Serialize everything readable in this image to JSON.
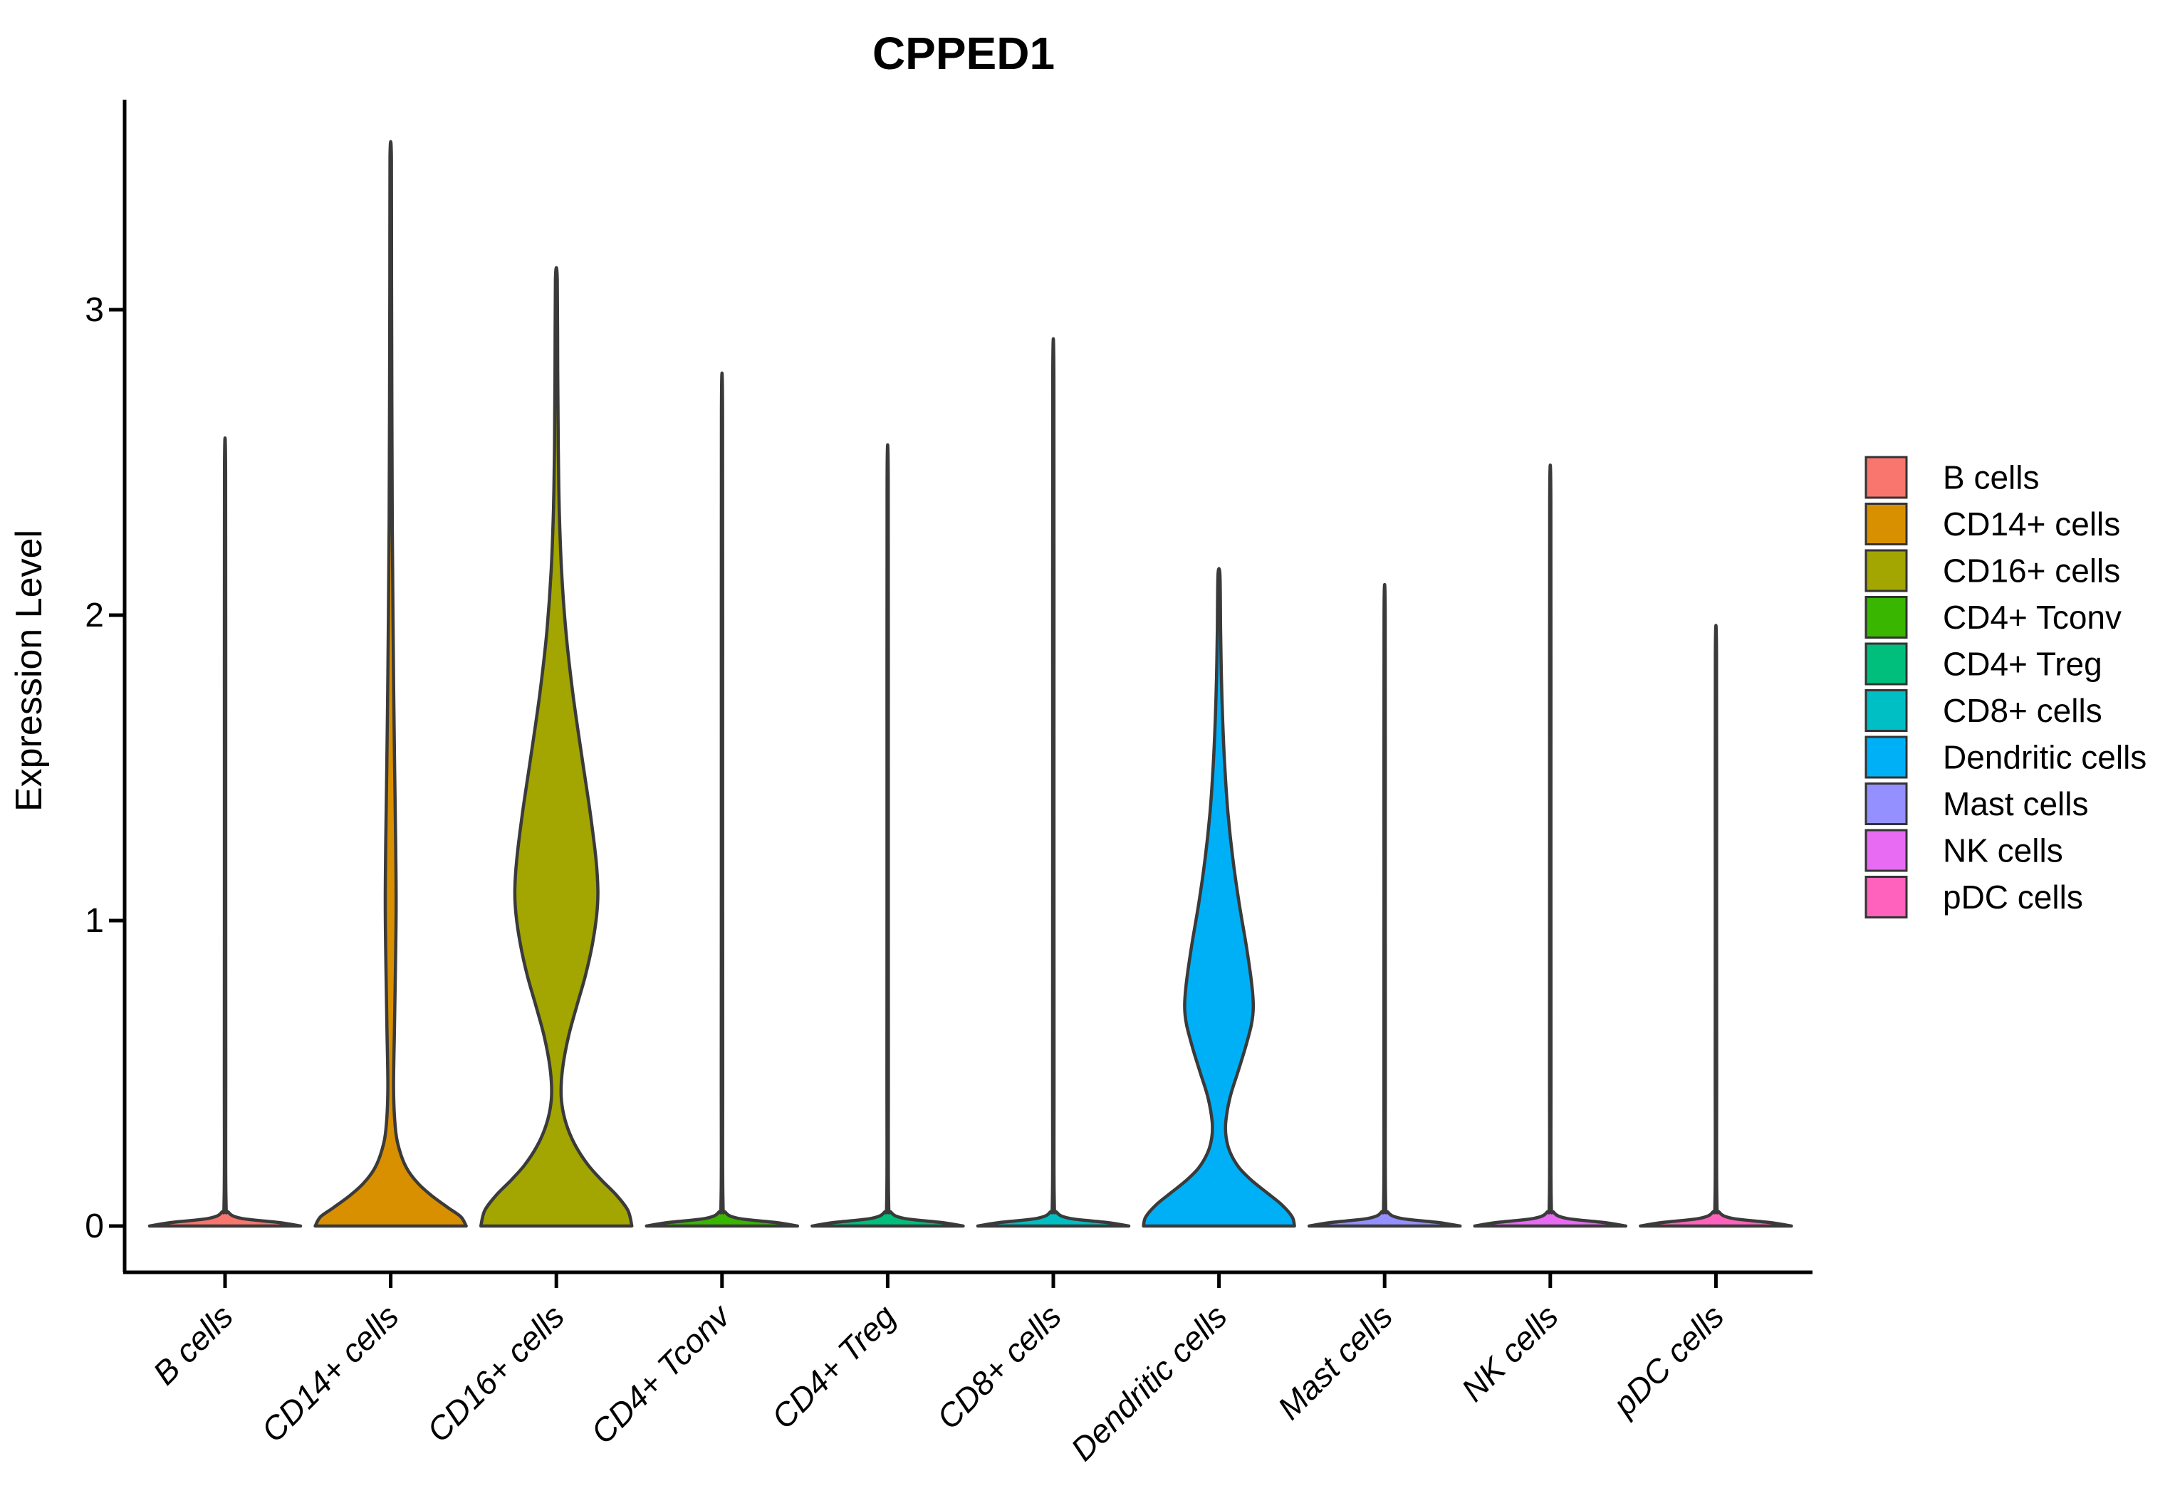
{
  "title": "CPPED1",
  "chart_data": {
    "type": "violin",
    "title": "CPPED1",
    "xlabel": "",
    "ylabel": "Expression Level",
    "y_ticks": [
      0,
      1,
      2,
      3
    ],
    "ylim": [
      -0.15,
      3.75
    ],
    "grid": "off",
    "legend_position": "right",
    "axis_color": "#000000",
    "outline_color": "#3a3a3a",
    "categories": [
      "B cells",
      "CD14+ cells",
      "CD16+ cells",
      "CD4+ Tconv",
      "CD4+ Treg",
      "CD8+ cells",
      "Dendritic cells",
      "Mast cells",
      "NK cells",
      "pDC cells"
    ],
    "legend_labels": [
      "B cells",
      "CD14+ cells",
      "CD16+ cells",
      "CD4+ Tconv",
      "CD4+ Treg",
      "CD8+ cells",
      "Dendritic cells",
      "Mast cells",
      "NK cells",
      "pDC cells"
    ],
    "series": [
      {
        "name": "B cells",
        "color": "#F8766D",
        "max_expression": 2.46,
        "density_profile": [
          [
            0,
            1.0
          ],
          [
            0.012,
            0.7
          ],
          [
            0.025,
            0.22
          ],
          [
            0.045,
            0.045
          ],
          [
            0.09,
            0.012
          ],
          [
            0.5,
            0.009
          ],
          [
            1.5,
            0.0085
          ],
          [
            2.46,
            0.008
          ]
        ]
      },
      {
        "name": "CD14+ cells",
        "color": "#D89000",
        "max_expression": 3.5,
        "density_profile": [
          [
            0,
            1.0
          ],
          [
            0.03,
            0.93
          ],
          [
            0.06,
            0.76
          ],
          [
            0.1,
            0.54
          ],
          [
            0.14,
            0.36
          ],
          [
            0.19,
            0.21
          ],
          [
            0.25,
            0.115
          ],
          [
            0.32,
            0.062
          ],
          [
            0.45,
            0.038
          ],
          [
            0.65,
            0.05
          ],
          [
            0.85,
            0.063
          ],
          [
            1.05,
            0.072
          ],
          [
            1.25,
            0.066
          ],
          [
            1.5,
            0.052
          ],
          [
            1.75,
            0.04
          ],
          [
            2.0,
            0.03
          ],
          [
            2.3,
            0.021
          ],
          [
            2.7,
            0.015
          ],
          [
            3.1,
            0.011
          ],
          [
            3.5,
            0.009
          ]
        ]
      },
      {
        "name": "CD16+ cells",
        "color": "#A3A500",
        "max_expression": 3.1,
        "density_profile": [
          [
            0,
            1.0
          ],
          [
            0.05,
            0.95
          ],
          [
            0.1,
            0.8
          ],
          [
            0.15,
            0.6
          ],
          [
            0.2,
            0.42
          ],
          [
            0.26,
            0.26
          ],
          [
            0.32,
            0.15
          ],
          [
            0.38,
            0.085
          ],
          [
            0.44,
            0.062
          ],
          [
            0.52,
            0.085
          ],
          [
            0.62,
            0.16
          ],
          [
            0.72,
            0.27
          ],
          [
            0.82,
            0.385
          ],
          [
            0.92,
            0.475
          ],
          [
            1.02,
            0.535
          ],
          [
            1.1,
            0.55
          ],
          [
            1.2,
            0.525
          ],
          [
            1.35,
            0.45
          ],
          [
            1.55,
            0.33
          ],
          [
            1.75,
            0.215
          ],
          [
            1.95,
            0.125
          ],
          [
            2.15,
            0.068
          ],
          [
            2.35,
            0.038
          ],
          [
            2.55,
            0.025
          ],
          [
            2.8,
            0.018
          ],
          [
            3.1,
            0.012
          ]
        ]
      },
      {
        "name": "CD4+ Tconv",
        "color": "#39B600",
        "max_expression": 2.66,
        "density_profile": [
          [
            0,
            1.0
          ],
          [
            0.012,
            0.7
          ],
          [
            0.025,
            0.22
          ],
          [
            0.045,
            0.045
          ],
          [
            0.09,
            0.012
          ],
          [
            0.5,
            0.009
          ],
          [
            1.6,
            0.0085
          ],
          [
            2.66,
            0.008
          ]
        ]
      },
      {
        "name": "CD4+ Treg",
        "color": "#00BF7D",
        "max_expression": 2.44,
        "density_profile": [
          [
            0,
            1.0
          ],
          [
            0.012,
            0.7
          ],
          [
            0.025,
            0.22
          ],
          [
            0.045,
            0.045
          ],
          [
            0.09,
            0.012
          ],
          [
            0.5,
            0.009
          ],
          [
            1.5,
            0.0085
          ],
          [
            2.44,
            0.008
          ]
        ]
      },
      {
        "name": "CD8+ cells",
        "color": "#00BFC4",
        "max_expression": 2.76,
        "density_profile": [
          [
            0,
            1.0
          ],
          [
            0.012,
            0.7
          ],
          [
            0.025,
            0.22
          ],
          [
            0.045,
            0.045
          ],
          [
            0.09,
            0.012
          ],
          [
            0.5,
            0.009
          ],
          [
            1.6,
            0.0085
          ],
          [
            2.76,
            0.008
          ]
        ]
      },
      {
        "name": "Dendritic cells",
        "color": "#00B0F6",
        "max_expression": 2.13,
        "density_profile": [
          [
            0,
            1.0
          ],
          [
            0.03,
            0.97
          ],
          [
            0.07,
            0.83
          ],
          [
            0.11,
            0.63
          ],
          [
            0.15,
            0.43
          ],
          [
            0.19,
            0.27
          ],
          [
            0.24,
            0.15
          ],
          [
            0.29,
            0.095
          ],
          [
            0.34,
            0.09
          ],
          [
            0.42,
            0.145
          ],
          [
            0.5,
            0.245
          ],
          [
            0.58,
            0.345
          ],
          [
            0.66,
            0.43
          ],
          [
            0.72,
            0.455
          ],
          [
            0.8,
            0.43
          ],
          [
            0.92,
            0.36
          ],
          [
            1.06,
            0.265
          ],
          [
            1.2,
            0.185
          ],
          [
            1.35,
            0.12
          ],
          [
            1.5,
            0.078
          ],
          [
            1.65,
            0.05
          ],
          [
            1.8,
            0.032
          ],
          [
            1.95,
            0.022
          ],
          [
            2.13,
            0.013
          ]
        ]
      },
      {
        "name": "Mast cells",
        "color": "#9590FF",
        "max_expression": 2.0,
        "density_profile": [
          [
            0,
            1.0
          ],
          [
            0.012,
            0.7
          ],
          [
            0.025,
            0.22
          ],
          [
            0.045,
            0.045
          ],
          [
            0.09,
            0.012
          ],
          [
            0.5,
            0.009
          ],
          [
            1.2,
            0.0085
          ],
          [
            2.0,
            0.008
          ]
        ]
      },
      {
        "name": "NK cells",
        "color": "#E76BF3",
        "max_expression": 2.37,
        "density_profile": [
          [
            0,
            1.0
          ],
          [
            0.012,
            0.7
          ],
          [
            0.025,
            0.22
          ],
          [
            0.045,
            0.045
          ],
          [
            0.09,
            0.012
          ],
          [
            0.5,
            0.009
          ],
          [
            1.4,
            0.0085
          ],
          [
            2.37,
            0.008
          ]
        ]
      },
      {
        "name": "pDC cells",
        "color": "#FF62BC",
        "max_expression": 1.87,
        "density_profile": [
          [
            0,
            1.0
          ],
          [
            0.012,
            0.7
          ],
          [
            0.025,
            0.22
          ],
          [
            0.045,
            0.045
          ],
          [
            0.09,
            0.012
          ],
          [
            0.5,
            0.009
          ],
          [
            1.1,
            0.0085
          ],
          [
            1.87,
            0.008
          ]
        ]
      }
    ]
  }
}
